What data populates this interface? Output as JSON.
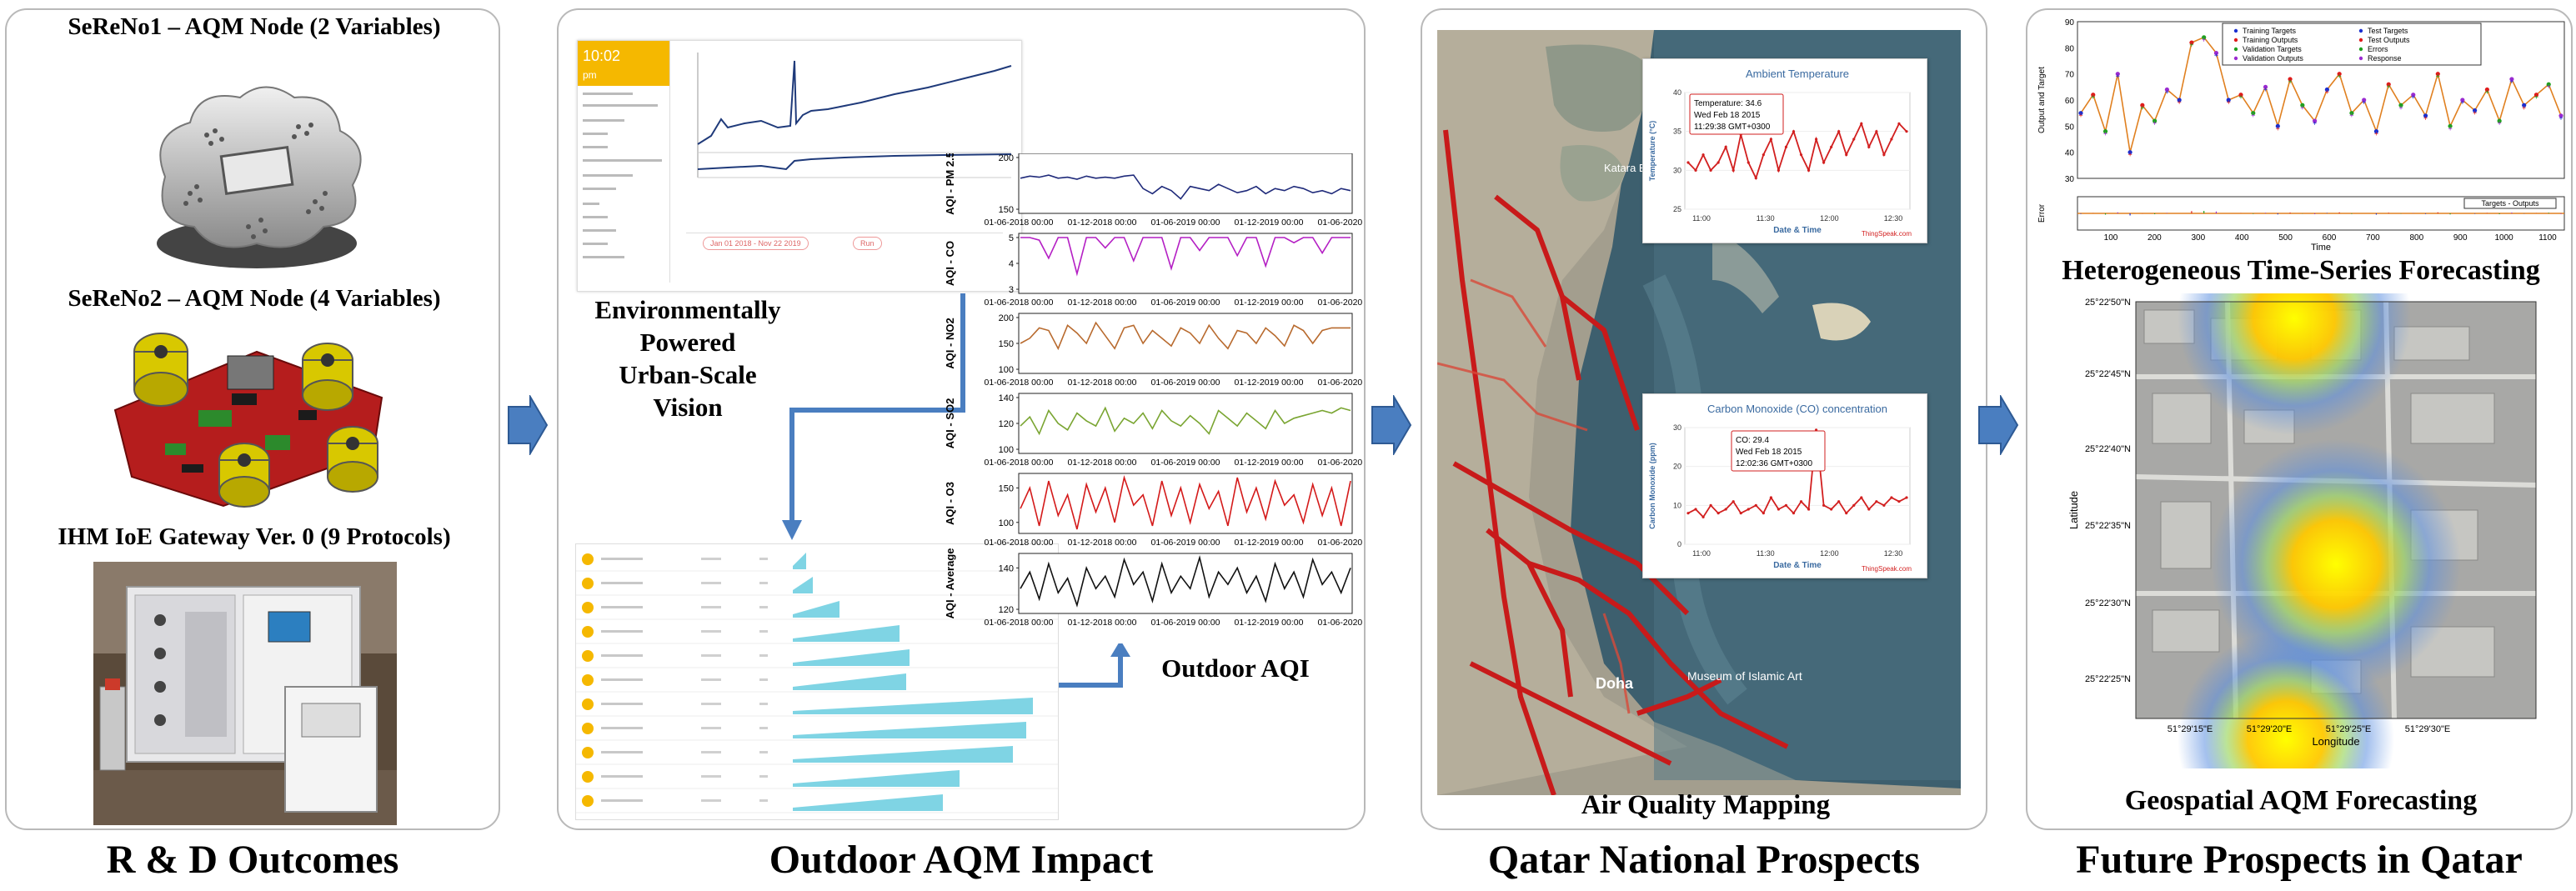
{
  "panels": {
    "p1": {
      "node1_label": "SeReNo1 – AQM Node (2 Variables)",
      "node2_label": "SeReNo2 – AQM Node (4 Variables)",
      "gateway_label": "IHM  IoE Gateway Ver. 0 (9 Protocols)",
      "title": "R & D Outcomes"
    },
    "p2": {
      "vision_line1": "Environmentally",
      "vision_line2": "Powered",
      "vision_line3": "Urban-Scale",
      "vision_line4": "Vision",
      "aqi_label": "Outdoor AQI",
      "title": "Outdoor AQM Impact",
      "dash_time": "10:02",
      "dash_time_suffix": "pm",
      "tile_date_range": "Jan 01 2018 - Nov 22 2019",
      "tile_button": "Run"
    },
    "p3": {
      "caption": "Air Quality Mapping",
      "title": "Qatar National Prospects",
      "temp_chart_title": "Ambient Temperature",
      "temp_ylabel": "Temperature (°C)",
      "temp_xlabel": "Date & Time",
      "temp_tooltip_l1": "Temperature: 34.6",
      "temp_tooltip_l2": "Wed Feb 18 2015",
      "temp_tooltip_l3": "11:29:38 GMT+0300",
      "co_chart_title": "Carbon Monoxide (CO) concentration",
      "co_ylabel": "Carbon Monoxide (ppm)",
      "co_xlabel": "Date & Time",
      "co_tooltip_l1": "CO: 29.4",
      "co_tooltip_l2": "Wed Feb 18 2015",
      "co_tooltip_l3": "12:02:36 GMT+0300",
      "credit": "ThingSpeak.com",
      "map_doha": "Doha",
      "map_museum": "Museum of Islamic Art",
      "map_katara": "Katara Beach"
    },
    "p4": {
      "caption_ts": "Heterogeneous Time-Series Forecasting",
      "caption_geo": "Geospatial AQM Forecasting",
      "title": "Future Prospects in Qatar",
      "ts_ylabel": "Output and Target",
      "ts_xlabel": "Time",
      "err_ylabel": "Error",
      "geo_ylabel": "Latitude",
      "geo_xlabel": "Longitude",
      "legend": [
        "Training Targets",
        "Training Outputs",
        "Validation Targets",
        "Validation Outputs",
        "Test Targets",
        "Test Outputs",
        "Errors",
        "Response"
      ],
      "err_legend": "Targets - Outputs"
    }
  },
  "chart_data": [
    {
      "type": "line",
      "title": "",
      "x_ticks": [
        "01-06-2018 00:00",
        "01-12-2018 00:00",
        "01-06-2019 00:00",
        "01-12-2019 00:00",
        "01-06-2020 00:00"
      ],
      "series": [
        {
          "name": "AQI - PM 2.5",
          "color": "#1f2a7a",
          "yticks": [
            "150",
            "200"
          ],
          "values": [
            180,
            182,
            181,
            183,
            180,
            181,
            179,
            182,
            180,
            181,
            180,
            182,
            183,
            170,
            165,
            172,
            168,
            160,
            172,
            170,
            168,
            174,
            170,
            166,
            168,
            172,
            165,
            170,
            168,
            172,
            170,
            166,
            168,
            165,
            170,
            168
          ]
        },
        {
          "name": "AQI - CO",
          "color": "#b41fc4",
          "yticks": [
            "3",
            "4",
            "5"
          ],
          "values": [
            5,
            5,
            4.9,
            4.2,
            5,
            5,
            3.6,
            5,
            5,
            4.6,
            5,
            5,
            4.1,
            5,
            5,
            5,
            3.8,
            5,
            5,
            4.5,
            5,
            5,
            5,
            4.3,
            5,
            5,
            3.9,
            5,
            5,
            4.8,
            5,
            5,
            4.4,
            5,
            5,
            5
          ]
        },
        {
          "name": "AQI - NO2",
          "color": "#b86a2e",
          "yticks": [
            "100",
            "150",
            "200"
          ],
          "values": [
            150,
            160,
            180,
            175,
            140,
            185,
            170,
            150,
            190,
            165,
            140,
            180,
            185,
            150,
            175,
            160,
            145,
            180,
            170,
            150,
            185,
            160,
            140,
            175,
            170,
            150,
            180,
            165,
            145,
            185,
            175,
            150,
            175,
            180,
            180,
            180
          ]
        },
        {
          "name": "AQI - SO2",
          "color": "#7aa532",
          "yticks": [
            "100",
            "120",
            "140"
          ],
          "values": [
            118,
            125,
            112,
            130,
            120,
            115,
            128,
            122,
            118,
            132,
            114,
            124,
            120,
            128,
            116,
            130,
            122,
            118,
            126,
            120,
            112,
            130,
            124,
            118,
            128,
            122,
            116,
            130,
            120,
            124,
            126,
            128,
            130,
            128,
            132,
            130
          ]
        },
        {
          "name": "AQI - O3",
          "color": "#d41a1a",
          "yticks": [
            "100",
            "150"
          ],
          "values": [
            120,
            150,
            95,
            160,
            110,
            140,
            90,
            155,
            115,
            150,
            100,
            165,
            125,
            140,
            95,
            160,
            110,
            150,
            100,
            155,
            120,
            145,
            95,
            165,
            115,
            150,
            105,
            160,
            125,
            140,
            100,
            155,
            110,
            150,
            95,
            160
          ]
        },
        {
          "name": "AQI - Average",
          "color": "#111111",
          "yticks": [
            "120",
            "140"
          ],
          "values": [
            130,
            138,
            125,
            142,
            128,
            135,
            122,
            140,
            130,
            136,
            126,
            144,
            132,
            138,
            124,
            142,
            128,
            136,
            130,
            145,
            126,
            138,
            132,
            140,
            128,
            136,
            124,
            142,
            130,
            138,
            126,
            144,
            132,
            138,
            128,
            140
          ]
        }
      ]
    },
    {
      "type": "line",
      "title": "Ambient Temperature",
      "xlabel": "Date & Time",
      "ylabel": "Temperature (°C)",
      "x_ticks": [
        "11:00",
        "11:30",
        "12:00",
        "12:30"
      ],
      "y_ticks": [
        "25",
        "30",
        "35",
        "40"
      ],
      "ylim": [
        25,
        40
      ],
      "series": [
        {
          "name": "Temperature",
          "values": [
            31,
            30,
            32,
            30,
            31,
            33,
            30,
            34.6,
            31,
            29,
            32,
            34,
            30,
            33,
            35,
            32,
            30,
            34,
            31,
            33,
            35,
            32,
            34,
            36,
            33,
            35,
            32,
            34,
            36,
            35
          ]
        }
      ]
    },
    {
      "type": "line",
      "title": "Carbon Monoxide (CO) concentration",
      "xlabel": "Date & Time",
      "ylabel": "Carbon Monoxide (ppm)",
      "x_ticks": [
        "11:00",
        "11:30",
        "12:00",
        "12:30"
      ],
      "y_ticks": [
        "0",
        "10",
        "20",
        "30"
      ],
      "ylim": [
        0,
        30
      ],
      "series": [
        {
          "name": "CO",
          "values": [
            8,
            9,
            7,
            10,
            8,
            9,
            11,
            8,
            9,
            10,
            8,
            12,
            9,
            10,
            8,
            11,
            9,
            29.4,
            10,
            9,
            11,
            8,
            10,
            12,
            9,
            11,
            10,
            12,
            11,
            12
          ]
        }
      ]
    },
    {
      "type": "line",
      "title": "",
      "xlabel": "Time",
      "ylabel": "Output and Target",
      "x_ticks": [
        "100",
        "200",
        "300",
        "400",
        "500",
        "600",
        "700",
        "800",
        "900",
        "1000",
        "1100"
      ],
      "y_ticks": [
        "30",
        "40",
        "50",
        "60",
        "70",
        "80",
        "90"
      ],
      "ylim": [
        30,
        90
      ],
      "series": [
        {
          "name": "Response",
          "values": [
            55,
            62,
            48,
            70,
            40,
            58,
            52,
            64,
            60,
            82,
            84,
            78,
            60,
            62,
            55,
            65,
            50,
            68,
            58,
            52,
            64,
            70,
            55,
            60,
            48,
            66,
            58,
            62,
            54,
            70,
            50,
            60,
            56,
            64,
            52,
            68,
            58,
            62,
            66,
            54
          ]
        }
      ]
    }
  ]
}
